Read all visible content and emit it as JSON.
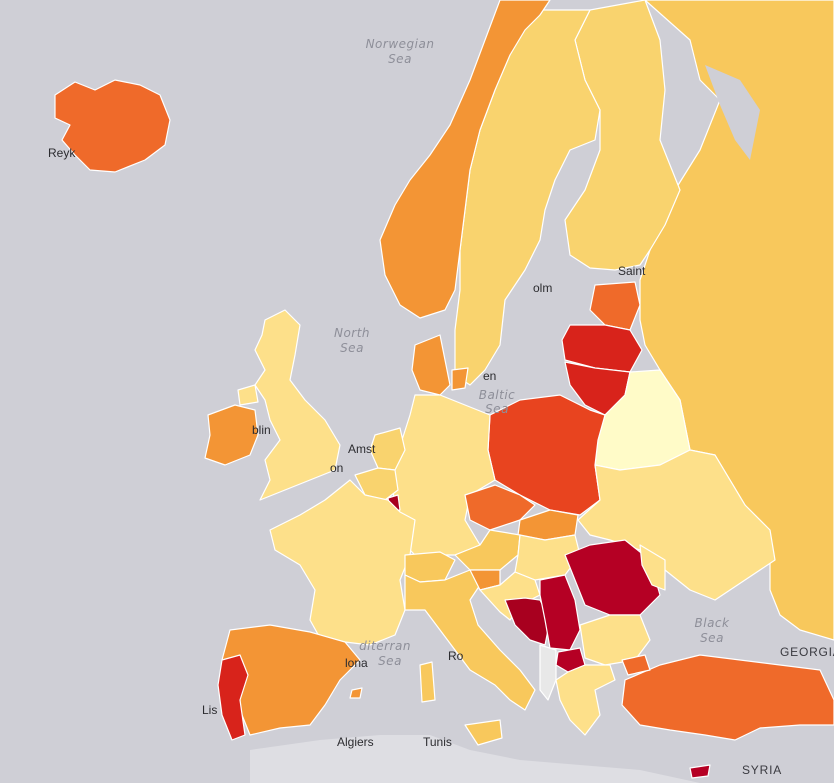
{
  "map": {
    "type": "choropleth",
    "background": "#cfcfd6",
    "palette": {
      "lightest": "#fffbc8",
      "light": "#fde08a",
      "light_mid": "#f9d36e",
      "mid": "#f8c85c",
      "orange": "#f39535",
      "dark_orange": "#ef6a2a",
      "red_orange": "#e8441f",
      "red": "#d8231b",
      "dark_red": "#b50024",
      "deep_red": "#a8001f"
    }
  },
  "sea_labels": {
    "norwegian_1": "Norwegian",
    "norwegian_2": "Sea",
    "north_1": "North",
    "north_2": "Sea",
    "baltic_1": "Baltic",
    "baltic_2": "Sea",
    "med_1": "diterran",
    "med_2": "Sea",
    "black_1": "Black",
    "black_2": "Sea"
  },
  "city_labels": {
    "reykjavik": "Reyk",
    "stockholm": "olm",
    "saint_petersburg": "Saint",
    "dublin": "blin",
    "amsterdam": "Amst",
    "london": "on",
    "barcelona": "lona",
    "rome": "Ro",
    "lisbon": "Lis",
    "algiers": "Algiers",
    "tunis": "Tunis",
    "copenhagen": "en"
  },
  "region_labels": {
    "georgia": "GEORGIA",
    "syria": "SYRIA"
  }
}
